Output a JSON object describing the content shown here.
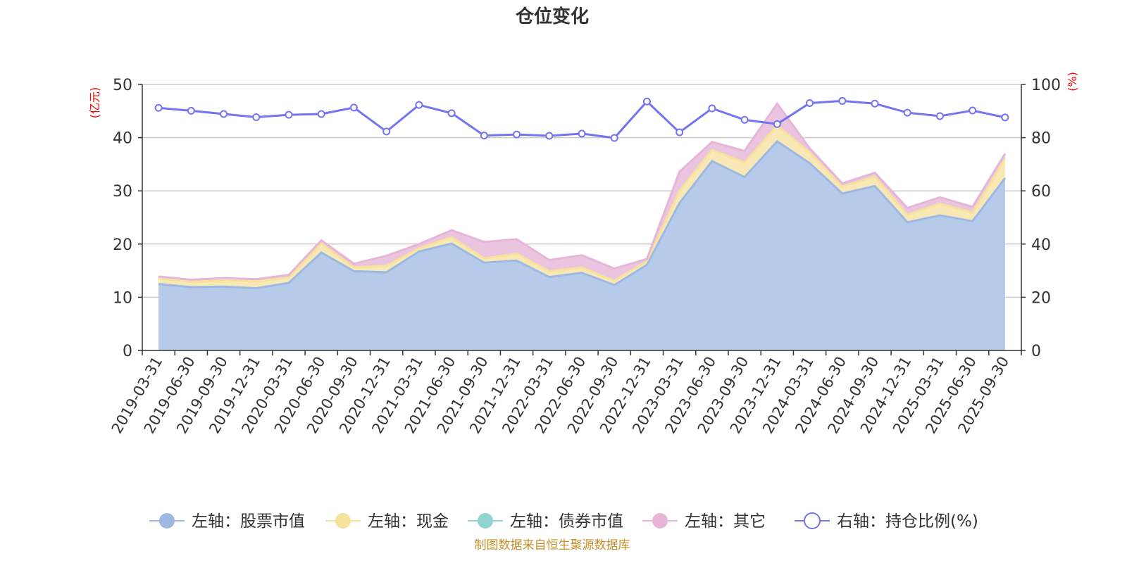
{
  "chart_data": {
    "type": "area",
    "title": "仓位变化",
    "left_axis_unit": "(亿元)",
    "right_axis_unit": "(%)",
    "categories": [
      "2019-03-31",
      "2019-06-30",
      "2019-09-30",
      "2019-12-31",
      "2020-03-31",
      "2020-06-30",
      "2020-09-30",
      "2020-12-31",
      "2021-03-31",
      "2021-06-30",
      "2021-09-30",
      "2021-12-31",
      "2022-03-31",
      "2022-06-30",
      "2022-09-30",
      "2022-12-31",
      "2023-03-31",
      "2023-06-30",
      "2023-09-30",
      "2023-12-31",
      "2024-03-31",
      "2024-06-30",
      "2024-09-30",
      "2024-12-31",
      "2025-03-31",
      "2025-06-30",
      "2025-09-30"
    ],
    "ylim_left": [
      0,
      50
    ],
    "yticks_left": [
      0,
      10,
      20,
      30,
      40,
      50
    ],
    "ylim_right": [
      0,
      100
    ],
    "yticks_right": [
      0,
      20,
      40,
      60,
      80,
      100
    ],
    "series": [
      {
        "name": "左轴：股票市值",
        "axis": "left",
        "type": "area",
        "color": "#9db8e2",
        "fill": "#b6cbe9",
        "values": [
          12.5,
          11.9,
          12.0,
          11.7,
          12.7,
          18.4,
          14.9,
          14.7,
          18.6,
          20.1,
          16.5,
          16.9,
          13.8,
          14.6,
          12.3,
          16.1,
          27.7,
          35.6,
          32.6,
          39.3,
          35.2,
          29.5,
          30.9,
          24.1,
          25.4,
          24.3,
          32.4
        ]
      },
      {
        "name": "左轴：现金",
        "axis": "left",
        "type": "area",
        "color": "#f6e29a",
        "fill": "#f8e8b5",
        "values": [
          1.0,
          1.0,
          1.2,
          1.3,
          1.0,
          1.7,
          0.7,
          1.2,
          0.6,
          1.2,
          0.8,
          1.3,
          1.1,
          1.0,
          0.8,
          0.7,
          2.3,
          2.1,
          2.7,
          3.0,
          2.0,
          1.3,
          1.8,
          1.4,
          2.2,
          1.6,
          3.6
        ]
      },
      {
        "name": "左轴：债券市值",
        "axis": "left",
        "type": "area",
        "color": "#8fd3d2",
        "fill": "#a8dcdb",
        "values": [
          0,
          0,
          0,
          0,
          0,
          0,
          0,
          0,
          0,
          0,
          0,
          0,
          0,
          0,
          0,
          0,
          0,
          0,
          0,
          0,
          0,
          0,
          0,
          0,
          0,
          0,
          0
        ]
      },
      {
        "name": "左轴：其它",
        "axis": "left",
        "type": "area",
        "color": "#e6b5d8",
        "fill": "#ebc4df",
        "values": [
          0.4,
          0.4,
          0.4,
          0.4,
          0.5,
          0.6,
          0.7,
          1.9,
          0.8,
          1.3,
          3.1,
          2.7,
          2.1,
          2.3,
          2.3,
          0.4,
          3.6,
          1.5,
          2.2,
          4.1,
          0.8,
          0.6,
          0.7,
          1.3,
          1.2,
          1.1,
          1.0
        ]
      },
      {
        "name": "右轴：持仓比例(%)",
        "axis": "right",
        "type": "line",
        "color": "#7474f0",
        "values": [
          91.2,
          90.1,
          88.9,
          87.7,
          88.6,
          88.9,
          91.3,
          82.3,
          92.3,
          89.2,
          80.8,
          81.2,
          80.7,
          81.5,
          79.9,
          93.6,
          82.0,
          91.0,
          86.7,
          85.1,
          93.0,
          93.8,
          92.8,
          89.4,
          88.1,
          90.2,
          87.6
        ]
      }
    ],
    "source_note": "制图数据来自恒生聚源数据库"
  }
}
